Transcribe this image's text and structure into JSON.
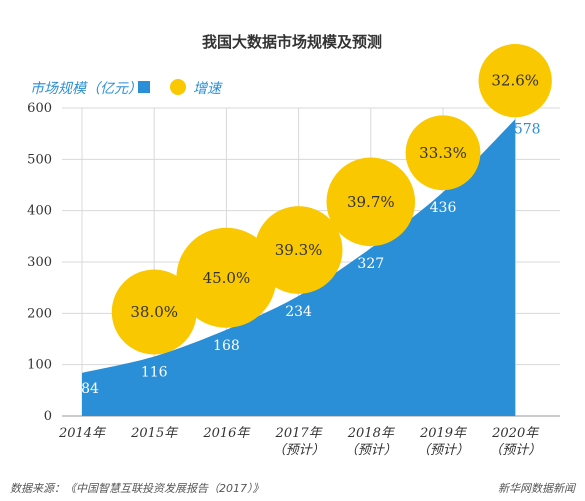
{
  "colors": {
    "area": "#2a8fd6",
    "bubble": "#f9c800",
    "grid": "#d8d8d8",
    "legend_text": "#2a8fd6",
    "value_inside": "#ffffff",
    "value_outside": "#2a8fd6"
  },
  "legend": {
    "area_label": "市场规模（亿元）",
    "bubble_label": "增速",
    "position": "top-left"
  },
  "footer": {
    "source": "数据来源：《中国智慧互联投资发展报告（2017）》",
    "brand": "新华网数据新闻"
  },
  "chart_data": {
    "type": "area",
    "title": "我国大数据市场规模及预测",
    "categories": [
      "2014年",
      "2015年",
      "2016年",
      "2017年",
      "2018年",
      "2019年",
      "2020年"
    ],
    "category_notes": [
      "",
      "",
      "",
      "（预计）",
      "（预计）",
      "（预计）",
      "（预计）"
    ],
    "series": [
      {
        "name": "市场规模（亿元）",
        "values": [
          84,
          116,
          168,
          234,
          327,
          436,
          578
        ]
      },
      {
        "name": "增速",
        "values": [
          "",
          "38.0%",
          "45.0%",
          "39.3%",
          "39.7%",
          "33.3%",
          "32.6%"
        ]
      }
    ],
    "growth_rates": [
      null,
      38.0,
      45.0,
      39.3,
      39.7,
      33.3,
      32.6
    ],
    "ylim": [
      0,
      600
    ],
    "yticks": [
      0,
      100,
      200,
      300,
      400,
      500,
      600
    ],
    "grid": true
  }
}
